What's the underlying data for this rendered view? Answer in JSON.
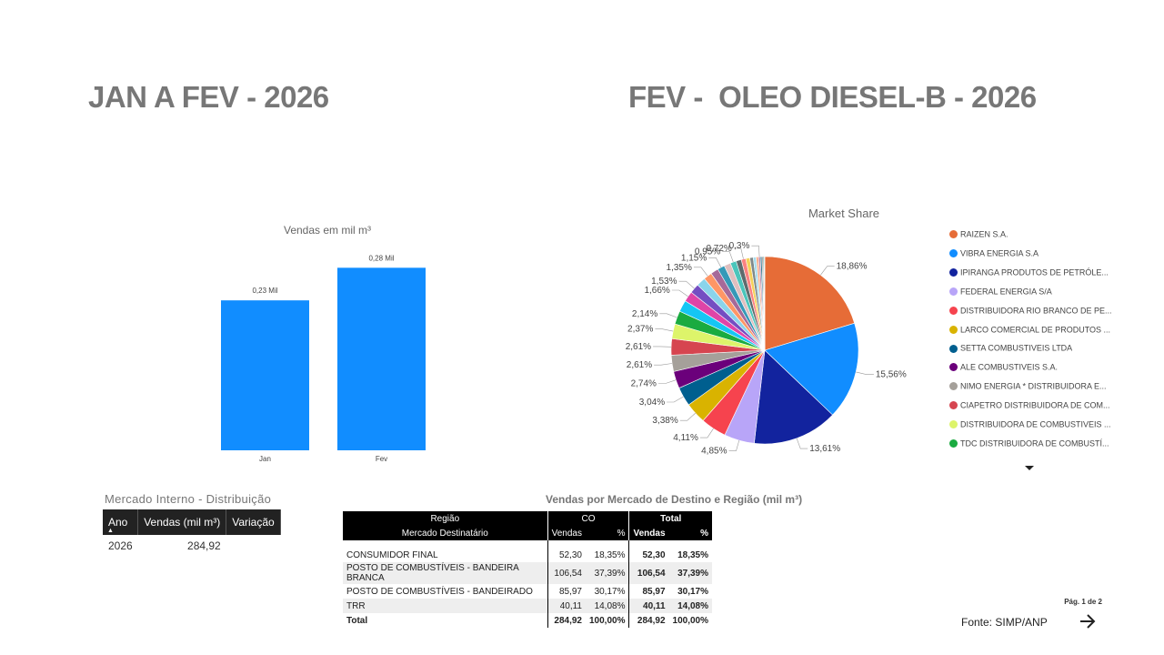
{
  "titles": {
    "left": "JAN A FEV - 2026",
    "right": "FEV -  OLEO DIESEL-B - 2026"
  },
  "chart_data": [
    {
      "type": "bar",
      "title": "Vendas  em mil m³",
      "categories": [
        "Jan",
        "Fev"
      ],
      "values": [
        0.23,
        0.28
      ],
      "data_labels": [
        "0,23 Mil",
        "0,28 Mil"
      ],
      "color": "#118DFF",
      "ylim": [
        0,
        0.3
      ]
    },
    {
      "type": "pie",
      "title": "Market Share",
      "slices": [
        18.86,
        15.56,
        13.61,
        4.85,
        4.11,
        3.38,
        3.04,
        2.74,
        2.61,
        2.61,
        2.37,
        2.14,
        1.85,
        1.66,
        1.53,
        1.45,
        1.35,
        1.25,
        1.15,
        1.05,
        0.95,
        0.85,
        0.72,
        0.65,
        0.55,
        0.45,
        0.38,
        0.3,
        0.25,
        0.2,
        0.15,
        0.1
      ],
      "slice_labels": [
        "18,86%",
        "15,56%",
        "13,61%",
        "4,85%",
        "4,11%",
        "3,38%",
        "3,04%",
        "2,74%",
        "2,61%",
        "2,61%",
        "2,37%",
        "2,14%",
        "",
        "1,66%",
        "1,53%",
        "",
        "1,35%",
        "",
        "1,15%",
        "",
        "0,95%",
        "",
        "0,72%",
        "",
        "",
        "",
        "",
        "0,3%",
        "",
        "",
        "",
        ""
      ],
      "colors": [
        "#E66C37",
        "#118DFF",
        "#12239E",
        "#B8A5F8",
        "#F6434E",
        "#D9B300",
        "#005F8F",
        "#6B007B",
        "#A5A09A",
        "#D64550",
        "#DDF46A",
        "#1AAB40",
        "#15C6F4",
        "#E044A7",
        "#744EC2",
        "#8AD4EB",
        "#FE9666",
        "#A66999",
        "#3599B8",
        "#DFBFBF",
        "#4AC5BB",
        "#5F6B6D",
        "#FB8281",
        "#F4D25A",
        "#7F898A",
        "#A4DDEE",
        "#FDAB89",
        "#B687AC",
        "#28738A",
        "#A78F8F",
        "#168980",
        "#293537"
      ],
      "legend": [
        {
          "name": "RAIZEN S.A.",
          "color": "#E66C37"
        },
        {
          "name": "VIBRA ENERGIA S.A",
          "color": "#118DFF"
        },
        {
          "name": "IPIRANGA PRODUTOS DE PETRÓLE...",
          "color": "#12239E"
        },
        {
          "name": "FEDERAL ENERGIA S/A",
          "color": "#B8A5F8"
        },
        {
          "name": "DISTRIBUIDORA RIO BRANCO DE PE...",
          "color": "#F6434E"
        },
        {
          "name": "LARCO COMERCIAL DE PRODUTOS ...",
          "color": "#D9B300"
        },
        {
          "name": "SETTA COMBUSTIVEIS LTDA",
          "color": "#005F8F"
        },
        {
          "name": "ALE COMBUSTIVEIS S.A.",
          "color": "#6B007B"
        },
        {
          "name": "NIMO ENERGIA * DISTRIBUIDORA E...",
          "color": "#A5A09A"
        },
        {
          "name": "CIAPETRO DISTRIBUIDORA DE COM...",
          "color": "#D64550"
        },
        {
          "name": "DISTRIBUIDORA DE COMBUSTIVEIS ...",
          "color": "#DDF46A"
        },
        {
          "name": "TDC DISTRIBUIDORA DE COMBUSTÍ...",
          "color": "#1AAB40"
        }
      ],
      "legend_position": "right"
    }
  ],
  "mercado_interno": {
    "title": "Mercado Interno - Distribuição",
    "headers": [
      "Ano",
      "Vendas (mil m³)",
      "Variação"
    ],
    "rows": [
      [
        "2026",
        "284,92",
        ""
      ]
    ]
  },
  "vendas_table": {
    "title": "Vendas por Mercado de Destino e Região (mil m³)",
    "header_regiao": "Região",
    "header_co": "CO",
    "header_total": "Total",
    "header_mercado": "Mercado Destinatário",
    "header_vendas": "Vendas",
    "header_pct": "%",
    "rows": [
      {
        "name": "CONSUMIDOR FINAL",
        "co_v": "52,30",
        "co_p": "18,35%",
        "t_v": "52,30",
        "t_p": "18,35%"
      },
      {
        "name": "POSTO DE COMBUSTÍVEIS - BANDEIRA BRANCA",
        "co_v": "106,54",
        "co_p": "37,39%",
        "t_v": "106,54",
        "t_p": "37,39%"
      },
      {
        "name": "POSTO DE COMBUSTÍVEIS - BANDEIRADO",
        "co_v": "85,97",
        "co_p": "30,17%",
        "t_v": "85,97",
        "t_p": "30,17%"
      },
      {
        "name": "TRR",
        "co_v": "40,11",
        "co_p": "14,08%",
        "t_v": "40,11",
        "t_p": "14,08%"
      }
    ],
    "total": {
      "name": "Total",
      "co_v": "284,92",
      "co_p": "100,00%",
      "t_v": "284,92",
      "t_p": "100,00%"
    }
  },
  "footer": {
    "page": "Pág. 1 de 2",
    "source": "Fonte: SIMP/ANP",
    "next_icon": "arrow-right-icon"
  }
}
